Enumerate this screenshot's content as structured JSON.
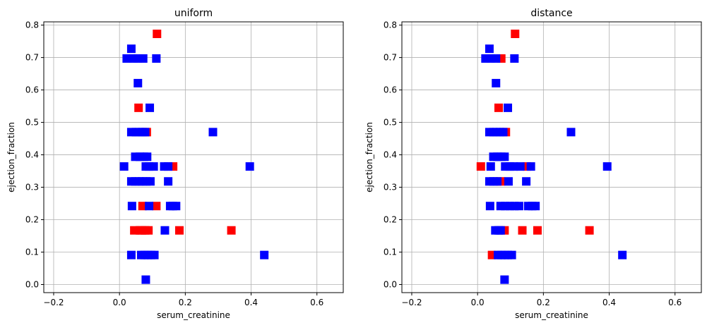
{
  "chart_data": [
    {
      "type": "scatter",
      "title": "uniform",
      "xlabel": "serum_creatinine",
      "ylabel": "ejection_fraction",
      "xlim": [
        -0.23,
        0.68
      ],
      "ylim": [
        -0.025,
        0.81
      ],
      "xticks": [
        -0.2,
        0.0,
        0.2,
        0.4,
        0.6
      ],
      "xtick_labels": [
        "−0.2",
        "0.0",
        "0.2",
        "0.4",
        "0.6"
      ],
      "yticks": [
        0.0,
        0.1,
        0.2,
        0.3,
        0.4,
        0.5,
        0.6,
        0.7,
        0.8
      ],
      "ytick_labels": [
        "0.0",
        "0.1",
        "0.2",
        "0.3",
        "0.4",
        "0.5",
        "0.6",
        "0.7",
        "0.8"
      ],
      "grid": true,
      "marker": "square",
      "colors": {
        "red": "#ff0000",
        "blue": "#0000ff"
      },
      "points": {
        "red": [
          [
            0.114,
            0.773
          ],
          [
            0.058,
            0.545
          ],
          [
            0.083,
            0.47
          ],
          [
            0.163,
            0.364
          ],
          [
            0.07,
            0.242
          ],
          [
            0.112,
            0.242
          ],
          [
            0.045,
            0.167
          ],
          [
            0.062,
            0.167
          ],
          [
            0.078,
            0.167
          ],
          [
            0.182,
            0.167
          ],
          [
            0.34,
            0.167
          ],
          [
            0.088,
            0.167
          ],
          [
            0.068,
            0.167
          ]
        ],
        "blue": [
          [
            0.036,
            0.727
          ],
          [
            0.022,
            0.697
          ],
          [
            0.042,
            0.697
          ],
          [
            0.056,
            0.697
          ],
          [
            0.072,
            0.697
          ],
          [
            0.112,
            0.697
          ],
          [
            0.056,
            0.621
          ],
          [
            0.092,
            0.545
          ],
          [
            0.036,
            0.47
          ],
          [
            0.05,
            0.47
          ],
          [
            0.06,
            0.47
          ],
          [
            0.07,
            0.47
          ],
          [
            0.078,
            0.47
          ],
          [
            0.284,
            0.47
          ],
          [
            0.048,
            0.394
          ],
          [
            0.062,
            0.394
          ],
          [
            0.074,
            0.394
          ],
          [
            0.084,
            0.394
          ],
          [
            0.014,
            0.364
          ],
          [
            0.08,
            0.364
          ],
          [
            0.09,
            0.364
          ],
          [
            0.104,
            0.364
          ],
          [
            0.136,
            0.364
          ],
          [
            0.148,
            0.364
          ],
          [
            0.396,
            0.364
          ],
          [
            0.036,
            0.318
          ],
          [
            0.048,
            0.318
          ],
          [
            0.06,
            0.318
          ],
          [
            0.07,
            0.318
          ],
          [
            0.082,
            0.318
          ],
          [
            0.094,
            0.318
          ],
          [
            0.148,
            0.318
          ],
          [
            0.038,
            0.242
          ],
          [
            0.09,
            0.242
          ],
          [
            0.154,
            0.242
          ],
          [
            0.162,
            0.242
          ],
          [
            0.172,
            0.242
          ],
          [
            0.138,
            0.167
          ],
          [
            0.036,
            0.091
          ],
          [
            0.066,
            0.091
          ],
          [
            0.076,
            0.091
          ],
          [
            0.086,
            0.091
          ],
          [
            0.096,
            0.091
          ],
          [
            0.106,
            0.091
          ],
          [
            0.44,
            0.091
          ],
          [
            0.08,
            0.015
          ]
        ]
      }
    },
    {
      "type": "scatter",
      "title": "distance",
      "xlabel": "serum_creatinine",
      "ylabel": "ejection_fraction",
      "xlim": [
        -0.23,
        0.68
      ],
      "ylim": [
        -0.025,
        0.81
      ],
      "xticks": [
        -0.2,
        0.0,
        0.2,
        0.4,
        0.6
      ],
      "xtick_labels": [
        "−0.2",
        "0.0",
        "0.2",
        "0.4",
        "0.6"
      ],
      "yticks": [
        0.0,
        0.1,
        0.2,
        0.3,
        0.4,
        0.5,
        0.6,
        0.7,
        0.8
      ],
      "ytick_labels": [
        "0.0",
        "0.1",
        "0.2",
        "0.3",
        "0.4",
        "0.5",
        "0.6",
        "0.7",
        "0.8"
      ],
      "grid": true,
      "marker": "square",
      "colors": {
        "red": "#ff0000",
        "blue": "#0000ff"
      },
      "points": {
        "red": [
          [
            0.114,
            0.773
          ],
          [
            0.072,
            0.697
          ],
          [
            0.064,
            0.545
          ],
          [
            0.086,
            0.47
          ],
          [
            0.01,
            0.364
          ],
          [
            0.15,
            0.364
          ],
          [
            0.07,
            0.318
          ],
          [
            0.082,
            0.167
          ],
          [
            0.136,
            0.167
          ],
          [
            0.182,
            0.167
          ],
          [
            0.34,
            0.167
          ],
          [
            0.044,
            0.091
          ]
        ],
        "blue": [
          [
            0.036,
            0.727
          ],
          [
            0.024,
            0.697
          ],
          [
            0.04,
            0.697
          ],
          [
            0.056,
            0.697
          ],
          [
            0.112,
            0.697
          ],
          [
            0.056,
            0.621
          ],
          [
            0.092,
            0.545
          ],
          [
            0.036,
            0.47
          ],
          [
            0.048,
            0.47
          ],
          [
            0.058,
            0.47
          ],
          [
            0.068,
            0.47
          ],
          [
            0.078,
            0.47
          ],
          [
            0.284,
            0.47
          ],
          [
            0.048,
            0.394
          ],
          [
            0.06,
            0.394
          ],
          [
            0.072,
            0.394
          ],
          [
            0.082,
            0.394
          ],
          [
            0.04,
            0.364
          ],
          [
            0.084,
            0.364
          ],
          [
            0.098,
            0.364
          ],
          [
            0.11,
            0.364
          ],
          [
            0.13,
            0.364
          ],
          [
            0.162,
            0.364
          ],
          [
            0.394,
            0.364
          ],
          [
            0.036,
            0.318
          ],
          [
            0.048,
            0.318
          ],
          [
            0.06,
            0.318
          ],
          [
            0.094,
            0.318
          ],
          [
            0.148,
            0.318
          ],
          [
            0.038,
            0.242
          ],
          [
            0.07,
            0.242
          ],
          [
            0.084,
            0.242
          ],
          [
            0.098,
            0.242
          ],
          [
            0.112,
            0.242
          ],
          [
            0.126,
            0.242
          ],
          [
            0.154,
            0.242
          ],
          [
            0.166,
            0.242
          ],
          [
            0.176,
            0.242
          ],
          [
            0.054,
            0.167
          ],
          [
            0.064,
            0.167
          ],
          [
            0.07,
            0.167
          ],
          [
            0.062,
            0.091
          ],
          [
            0.072,
            0.091
          ],
          [
            0.082,
            0.091
          ],
          [
            0.092,
            0.091
          ],
          [
            0.104,
            0.091
          ],
          [
            0.44,
            0.091
          ],
          [
            0.082,
            0.015
          ]
        ]
      }
    }
  ]
}
